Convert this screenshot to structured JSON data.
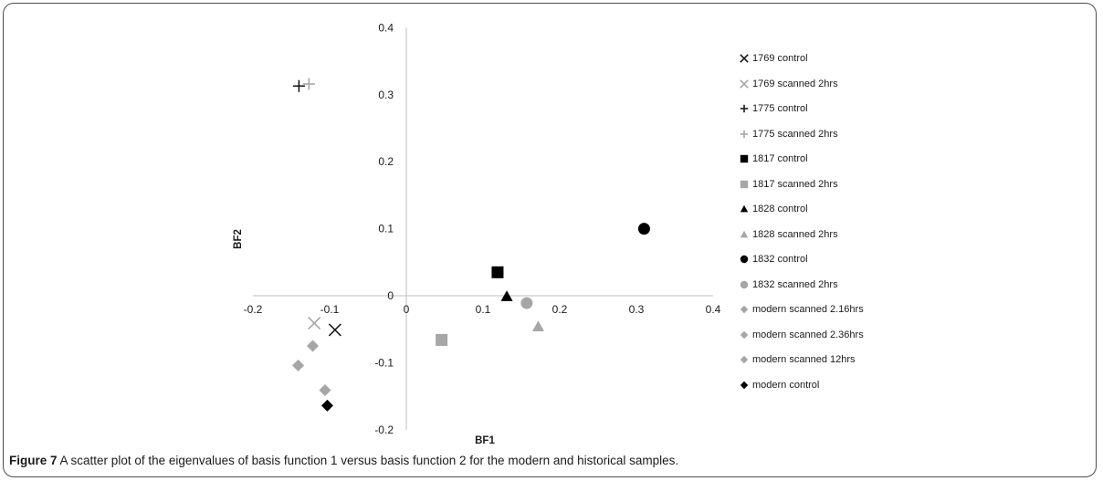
{
  "chart_data": {
    "type": "scatter",
    "xlabel": "BF1",
    "ylabel": "BF2",
    "xlim": [
      -0.2,
      0.4
    ],
    "ylim": [
      -0.2,
      0.4
    ],
    "xticks": [
      "-0.2",
      "-0.1",
      "0",
      "0.1",
      "0.2",
      "0.3",
      "0.4"
    ],
    "yticks": [
      "-0.2",
      "-0.1",
      "0",
      "0.1",
      "0.2",
      "0.3",
      "0.4"
    ],
    "grid": false,
    "legend_position": "right",
    "series": [
      {
        "name": "1769 control",
        "marker": "x-icon",
        "color": "#1a1a1a",
        "points": [
          [
            -0.093,
            -0.051
          ]
        ]
      },
      {
        "name": "1769 scanned 2hrs",
        "marker": "x-icon",
        "color": "#a6a6a6",
        "points": [
          [
            -0.12,
            -0.041
          ]
        ]
      },
      {
        "name": "1775 control",
        "marker": "plus-icon",
        "color": "#1a1a1a",
        "points": [
          [
            -0.14,
            0.313
          ]
        ]
      },
      {
        "name": "1775 scanned 2hrs",
        "marker": "plus-icon",
        "color": "#a6a6a6",
        "points": [
          [
            -0.127,
            0.316
          ]
        ]
      },
      {
        "name": "1817 control",
        "marker": "square-icon",
        "color": "#000000",
        "points": [
          [
            0.119,
            0.035
          ]
        ]
      },
      {
        "name": "1817 scanned 2hrs",
        "marker": "square-icon",
        "color": "#a6a6a6",
        "points": [
          [
            0.046,
            -0.066
          ]
        ]
      },
      {
        "name": "1828 control",
        "marker": "triangle-icon",
        "color": "#000000",
        "points": [
          [
            0.131,
            -0.001
          ]
        ]
      },
      {
        "name": "1828 scanned 2hrs",
        "marker": "triangle-icon",
        "color": "#a6a6a6",
        "points": [
          [
            0.172,
            -0.046
          ]
        ]
      },
      {
        "name": "1832 control",
        "marker": "circle-icon",
        "color": "#000000",
        "points": [
          [
            0.31,
            0.1
          ]
        ]
      },
      {
        "name": "1832 scanned 2hrs",
        "marker": "circle-icon",
        "color": "#a6a6a6",
        "points": [
          [
            0.157,
            -0.011
          ]
        ]
      },
      {
        "name": "modern scanned 2.16hrs",
        "marker": "diamond-icon",
        "color": "#a6a6a6",
        "points": [
          [
            -0.122,
            -0.075
          ]
        ]
      },
      {
        "name": "modern scanned 2.36hrs",
        "marker": "diamond-icon",
        "color": "#a6a6a6",
        "points": [
          [
            -0.141,
            -0.104
          ]
        ]
      },
      {
        "name": "modern scanned 12hrs",
        "marker": "diamond-icon",
        "color": "#a6a6a6",
        "points": [
          [
            -0.106,
            -0.141
          ]
        ]
      },
      {
        "name": "modern control",
        "marker": "diamond-icon",
        "color": "#000000",
        "points": [
          [
            -0.103,
            -0.164
          ]
        ]
      }
    ]
  },
  "caption": {
    "label": "Figure 7",
    "text": "A scatter plot of the eigenvalues of basis function 1 versus basis function 2 for the modern and historical samples."
  }
}
